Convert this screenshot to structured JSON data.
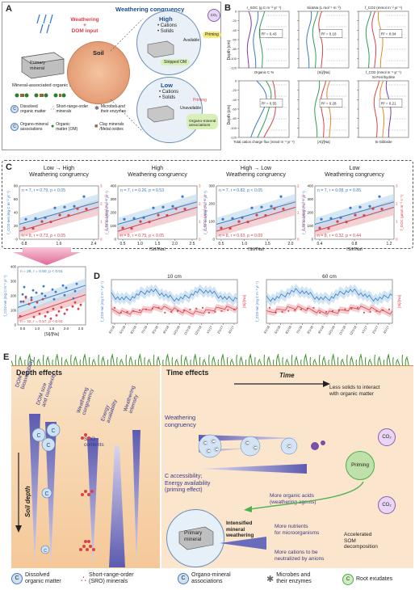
{
  "panelA": {
    "label": "A",
    "weathering_input": "Weathering\n+\nDOM input",
    "weathering_congruency": "Weathering congruency",
    "soil": "Soil",
    "primary_mineral": "Primary\nmineral",
    "mineral_assoc": "Mineral-associated organic matter",
    "high": {
      "title": "High",
      "line1": "• Cations",
      "line2": "• Solids",
      "available": "Available",
      "priming": "Priming",
      "stripped": "Stripped OM"
    },
    "low": {
      "title": "Low",
      "line1": "• Cations",
      "line2": "• Solids",
      "unavailable": "Unavailable",
      "priming": "Priming",
      "assoc": "Organo-mineral\nassociations"
    },
    "co2": "CO₂",
    "legend": [
      {
        "label": "Dissolved\norganic matter"
      },
      {
        "label": "Short-range-order\nminerals"
      },
      {
        "label": "Microbes and\ntheir enzymes"
      },
      {
        "label": "Organo-mineral\nassociations"
      },
      {
        "label": "Organic\nmatter (OM)"
      },
      {
        "label": "Clay minerals\n/Metal oxides"
      }
    ]
  },
  "panelB": {
    "label": "B",
    "top_titles": [
      "r_SOC (g C m⁻² yr⁻¹)",
      "Si/ΔNa (L mol⁻¹ m⁻²)",
      "f_CO2 (mmol m⁻² yr⁻¹)"
    ],
    "top_xlabels": [
      "Organic C %",
      "[Si]/[Na]",
      "f_CO2 (mmol m⁻² yr⁻¹)"
    ],
    "bot_titles": [
      "",
      "",
      "Si-Ferrihydrite"
    ],
    "bot_xlabels": [
      "Total cation charge flux (mmol m⁻² yr⁻¹)",
      "[Al]/[Na]",
      "Si-Gibbsite"
    ],
    "ylabel": "Depth (cm)",
    "r2": [
      "R² = 0.43",
      "R² = 0.18",
      "R² = 0.04",
      "R² = 0.55",
      "R² = 0.28",
      "R² = 0.21"
    ]
  },
  "panelC": {
    "label": "C",
    "charts": [
      {
        "title": "Low → High\nWeathering congruency",
        "blue_stat": "n = 7, r = 0.79, p < 0.05",
        "red_stat": "n = 8, r = 0.73, p < 0.05",
        "xticks": [
          "0.8",
          "1.6",
          "2.4"
        ],
        "yticks_left": [
          "0",
          "20",
          "40",
          "60",
          "80"
        ],
        "yticks_right": [
          "0",
          "1",
          "2",
          "3"
        ]
      },
      {
        "title": "High\nWeathering congruency",
        "blue_stat": "n = 7, r = 0.26, p = 0.53",
        "red_stat": "n = 8, r = 0.75, p < 0.05",
        "xticks": [
          "0.5",
          "1.0",
          "1.5",
          "2.0",
          "2.5"
        ],
        "yticks_left": [
          "0",
          "100",
          "200",
          "300",
          "400"
        ],
        "yticks_right": [
          "0",
          "1",
          "2",
          "3"
        ]
      },
      {
        "title": "High → Low\nWeathering congruency",
        "blue_stat": "n = 7, r = 0.82, p < 0.05",
        "red_stat": "n = 8, r = 0.63, p = 0.09",
        "xticks": [
          "0.5",
          "1.0",
          "1.5",
          "2.0"
        ],
        "yticks_left": [
          "0",
          "100",
          "200",
          "300"
        ],
        "yticks_right": [
          "0",
          "1",
          "2"
        ]
      },
      {
        "title": "Low\nWeathering congruency",
        "blue_stat": "n = 7, r = 0.08, p = 0.85",
        "red_stat": "n = 8, r = 0.32, p = 0.44",
        "xticks": [
          "0.4",
          "0.8",
          "1.2"
        ],
        "yticks_left": [
          "0",
          "100",
          "200",
          "300",
          "400"
        ],
        "yticks_right": [
          "0",
          "1",
          "2",
          "3"
        ]
      }
    ],
    "xlabel": "[Si]/[Na]",
    "ylabel_left": "f_CO2-net (mg C m⁻² yr⁻¹)",
    "ylabel_right": "f_DOC (µmol m⁻² s⁻¹)",
    "summary": {
      "blue_stat": "n = 28, r = 0.50, p < 0.01",
      "red_stat": "n = 32, r = 0.57, p < 0.01",
      "xticks": [
        "0.5",
        "1.0",
        "1.5",
        "2.0",
        "2.5"
      ],
      "yticks": [
        "0",
        "100",
        "200",
        "300",
        "400"
      ]
    }
  },
  "panelD": {
    "label": "D",
    "left_title": "10 cm",
    "right_title": "60 cm",
    "ylabel": "[Si]/[Na]",
    "ylabel_blue": "f_CO2-net (mg C m⁻² yr⁻¹)",
    "xticks_left": [
      "4/1/16",
      "5/1/16",
      "6/1/16",
      "7/1/16",
      "8/1/16",
      "9/1/16",
      "10/1/16",
      "11/1/16",
      "12/1/16",
      "1/1/17",
      "2/1/17",
      "3/1/17"
    ],
    "xticks_right": [
      "4/1/16",
      "5/1/16",
      "6/1/16",
      "7/1/16",
      "8/1/16",
      "9/1/16",
      "10/1/16",
      "11/1/16",
      "12/1/16",
      "1/1/17",
      "2/1/17",
      "3/1/17"
    ]
  },
  "panelE": {
    "label": "E",
    "depth_effects": "Depth effects",
    "depth_cols": [
      "DOM\nbioavailability",
      "DOM size\nand complexity",
      "Weathering\ncongruency",
      "Energy\navailability",
      "Weathering\nintensity"
    ],
    "sro_contents": "SRO\ncontents",
    "soil_depth": "Soil depth",
    "time_effects": "Time effects",
    "time": "Time",
    "less_solids": "Less solids to interact\nwith organic matter",
    "weathering_congruency": "Weathering\ncongruency",
    "c_access": "C accessibility;\nEnergy availability\n(priming effect)",
    "priming": "Priming",
    "more_acids": "More organic acids\n(weathering agents)",
    "primary_mineral": "Primary\nmineral",
    "intensified": "Intensified\nmineral\nweathering",
    "more_nutrients": "More nutrients\nfor microorganisms",
    "more_cations": "More cations to be\nneutralized by anions",
    "accelerated": "Accelerated\nSOM\ndecomposition",
    "co2": "CO₂",
    "legend": [
      {
        "label": "Dissolved\norganic matter"
      },
      {
        "label": "Short-range-order\n(SRO) minerals"
      },
      {
        "label": "Organo-mineral\nassociations"
      },
      {
        "label": "Microbes and\ntheir enzymes"
      },
      {
        "label": "Root exudates"
      }
    ]
  },
  "colors": {
    "blue": "#3d7bc4",
    "red": "#d8434a",
    "pink_band": "#f3c1c6",
    "blue_band": "#bcd9ee",
    "green": "#4caf50",
    "orange": "#e8a070",
    "purple": "#6a4c9c"
  }
}
